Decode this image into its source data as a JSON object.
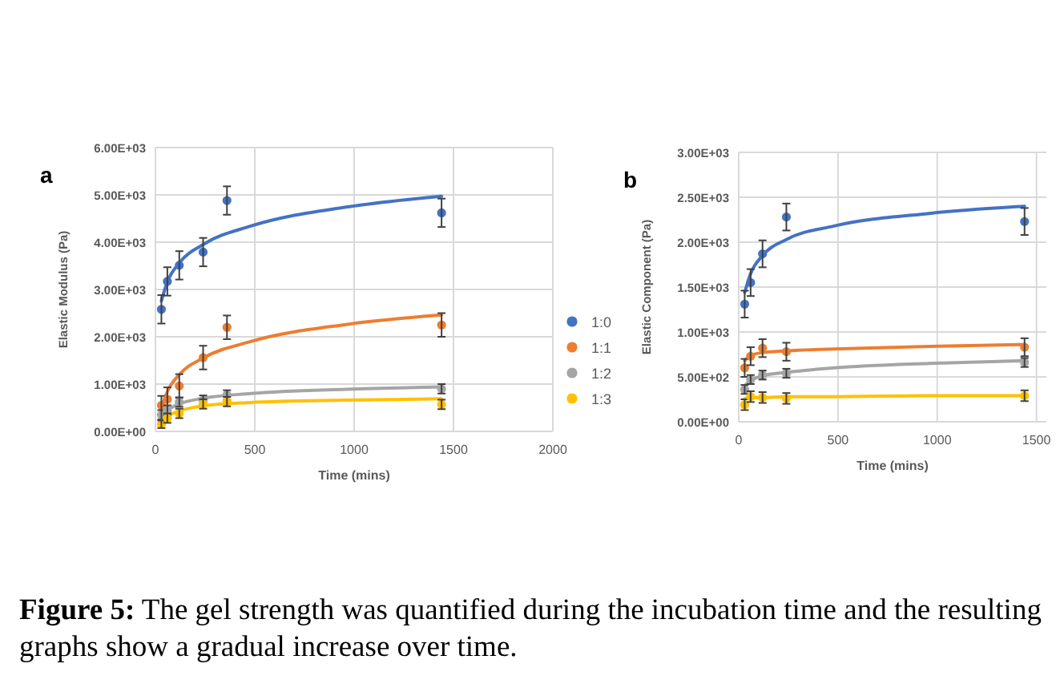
{
  "chart_data": [
    {
      "type": "scatter",
      "title": "a",
      "xlabel": "Time (mins)",
      "ylabel": "Elastic Modulus (Pa)",
      "xlim": [
        0,
        2000
      ],
      "xticks": [
        0,
        500,
        1000,
        1500,
        2000
      ],
      "ylim": [
        0,
        6000
      ],
      "yticks": [
        {
          "value": 0,
          "label": "0.00E+00"
        },
        {
          "value": 1000,
          "label": "1.00E+03"
        },
        {
          "value": 2000,
          "label": "2.00E+03"
        },
        {
          "value": 3000,
          "label": "3.00E+03"
        },
        {
          "value": 4000,
          "label": "4.00E+03"
        },
        {
          "value": 5000,
          "label": "5.00E+03"
        },
        {
          "value": 6000,
          "label": "6.00E+03"
        }
      ],
      "grid": true,
      "legend": "right",
      "marker": "circle",
      "x": [
        30,
        60,
        120,
        240,
        360,
        1440
      ],
      "series": [
        {
          "name": "1:0",
          "color": "#4472c4",
          "values": [
            2580,
            3170,
            3510,
            3790,
            4880,
            4620
          ],
          "errors": [
            300,
            300,
            300,
            300,
            300,
            300
          ]
        },
        {
          "name": "1:1",
          "color": "#ed7d31",
          "values": [
            550,
            680,
            960,
            1560,
            2200,
            2250
          ],
          "errors": [
            200,
            250,
            250,
            250,
            250,
            250
          ]
        },
        {
          "name": "1:2",
          "color": "#a5a5a5",
          "values": [
            350,
            450,
            620,
            660,
            770,
            900
          ],
          "errors": [
            100,
            100,
            100,
            100,
            100,
            100
          ]
        },
        {
          "name": "1:3",
          "color": "#ffc000",
          "values": [
            150,
            280,
            380,
            580,
            630,
            570
          ],
          "errors": [
            80,
            100,
            100,
            100,
            100,
            100
          ]
        },
        {
          "type": "line",
          "marker": "none",
          "color": "#4472c4",
          "line_style": "solid",
          "x": [
            30,
            60,
            120,
            240,
            480,
            960,
            1440
          ],
          "values": [
            2760,
            3160,
            3560,
            3950,
            4340,
            4740,
            4970
          ]
        },
        {
          "type": "line",
          "marker": "none",
          "color": "#ed7d31",
          "line_style": "solid",
          "x": [
            30,
            60,
            120,
            240,
            480,
            960,
            1440
          ],
          "values": [
            490,
            840,
            1200,
            1550,
            1900,
            2260,
            2460
          ]
        },
        {
          "type": "line",
          "marker": "none",
          "color": "#a5a5a5",
          "line_style": "solid",
          "x": [
            30,
            60,
            120,
            240,
            480,
            960,
            1440
          ],
          "values": [
            330,
            450,
            580,
            700,
            800,
            890,
            940
          ]
        },
        {
          "type": "line",
          "marker": "none",
          "color": "#ffc000",
          "line_style": "solid",
          "x": [
            30,
            60,
            120,
            240,
            480,
            960,
            1440
          ],
          "values": [
            200,
            320,
            430,
            540,
            610,
            660,
            690
          ]
        }
      ],
      "annotations": [
        "Figure 5: The gel strength was quantified during the incubation time and the resulting graphs show a gradual increase over time."
      ]
    },
    {
      "type": "scatter",
      "title": "b",
      "xlabel": "Time (mins)",
      "ylabel": "Elastic Component (Pa)",
      "xlim": [
        0,
        1550
      ],
      "xticks": [
        0,
        500,
        1000,
        1500
      ],
      "ylim": [
        0,
        3000
      ],
      "yticks": [
        {
          "value": 0,
          "label": "0.00E+00"
        },
        {
          "value": 500,
          "label": "5.00E+02"
        },
        {
          "value": 1000,
          "label": "1.00E+03"
        },
        {
          "value": 1500,
          "label": "1.50E+03"
        },
        {
          "value": 2000,
          "label": "2.00E+03"
        },
        {
          "value": 2500,
          "label": "2.50E+03"
        },
        {
          "value": 3000,
          "label": "3.00E+03"
        }
      ],
      "grid": true,
      "marker": "circle",
      "x": [
        30,
        60,
        120,
        240,
        1440
      ],
      "series": [
        {
          "color": "#4472c4",
          "values": [
            1310,
            1550,
            1870,
            2280,
            2230
          ],
          "errors": [
            150,
            150,
            150,
            150,
            150
          ]
        },
        {
          "color": "#ed7d31",
          "values": [
            600,
            730,
            820,
            780,
            830
          ],
          "errors": [
            100,
            100,
            100,
            100,
            100
          ]
        },
        {
          "color": "#a5a5a5",
          "values": [
            360,
            470,
            520,
            540,
            660
          ],
          "errors": [
            50,
            50,
            50,
            50,
            50
          ]
        },
        {
          "color": "#ffc000",
          "values": [
            190,
            280,
            270,
            260,
            290
          ],
          "errors": [
            60,
            60,
            60,
            60,
            60
          ]
        },
        {
          "type": "line",
          "marker": "none",
          "color": "#4472c4",
          "line_style": "solid",
          "x": [
            30,
            60,
            120,
            240,
            480,
            960,
            1440
          ],
          "values": [
            1440,
            1650,
            1850,
            2030,
            2180,
            2320,
            2400
          ]
        },
        {
          "type": "line",
          "marker": "none",
          "color": "#ed7d31",
          "line_style": "solid",
          "x": [
            30,
            60,
            120,
            240,
            480,
            960,
            1440
          ],
          "values": [
            680,
            740,
            770,
            790,
            810,
            840,
            860
          ]
        },
        {
          "type": "line",
          "marker": "none",
          "color": "#a5a5a5",
          "line_style": "solid",
          "x": [
            30,
            60,
            120,
            240,
            480,
            960,
            1440
          ],
          "values": [
            400,
            460,
            510,
            550,
            600,
            650,
            680
          ]
        },
        {
          "type": "line",
          "marker": "none",
          "color": "#ffc000",
          "line_style": "solid",
          "x": [
            30,
            60,
            120,
            240,
            480,
            960,
            1440
          ],
          "values": [
            260,
            270,
            270,
            280,
            280,
            290,
            290
          ]
        }
      ]
    }
  ]
}
